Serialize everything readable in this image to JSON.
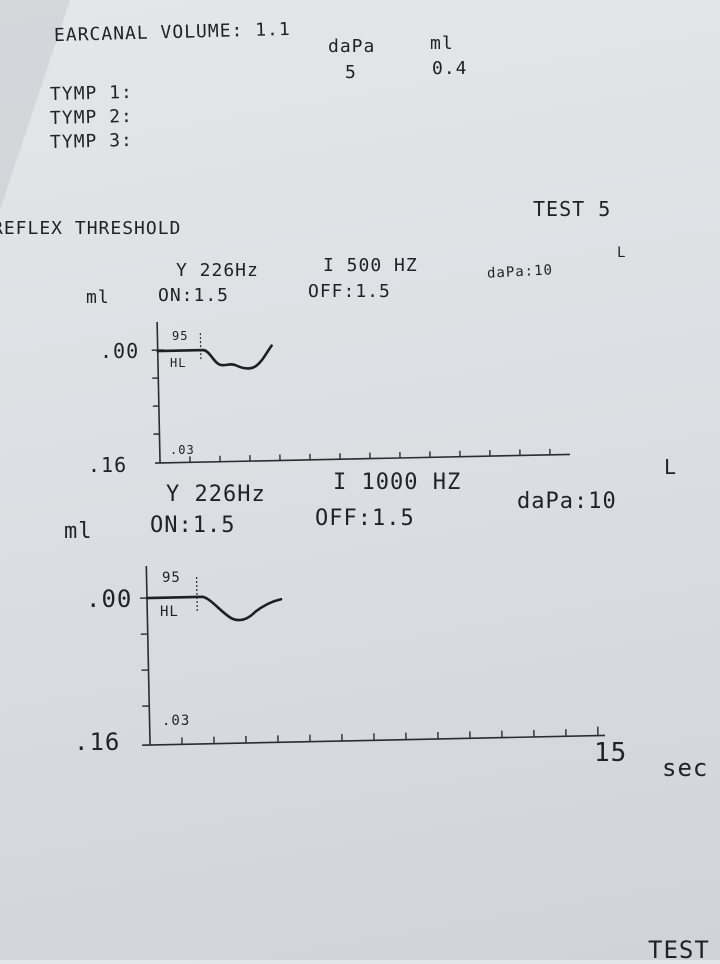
{
  "header": {
    "earcanal_volume_label": "EARCANAL VOLUME:",
    "earcanal_volume_value": "1.1",
    "col_dapa": "daPa",
    "col_ml": "ml",
    "dapa_value": "5",
    "ml_value": "0.4",
    "tymp1": "TYMP 1:",
    "tymp2": "TYMP 2:",
    "tymp3": "TYMP 3:"
  },
  "reflex": {
    "title": "REFLEX THRESHOLD",
    "test_label": "TEST",
    "test_number": "5"
  },
  "graph1": {
    "ear": "L",
    "probe": "Y 226Hz",
    "stimulus": "I 500 HZ",
    "dapa": "daPa:10",
    "unit": "ml",
    "on": "ON:1.5",
    "off": "OFF:1.5",
    "y_top": ".00",
    "y_bottom": ".16",
    "level": "95",
    "level_unit": "HL",
    "scale": ".03"
  },
  "graph2": {
    "ear": "L",
    "probe": "Y 226Hz",
    "stimulus": "I 1000 HZ",
    "dapa": "daPa:10",
    "unit": "ml",
    "on": "ON:1.5",
    "off": "OFF:1.5",
    "y_top": ".00",
    "y_bottom": ".16",
    "level": "95",
    "level_unit": "HL",
    "scale": ".03",
    "x_end": "15",
    "x_unit": "sec"
  },
  "footer": {
    "next_test": "TEST"
  }
}
